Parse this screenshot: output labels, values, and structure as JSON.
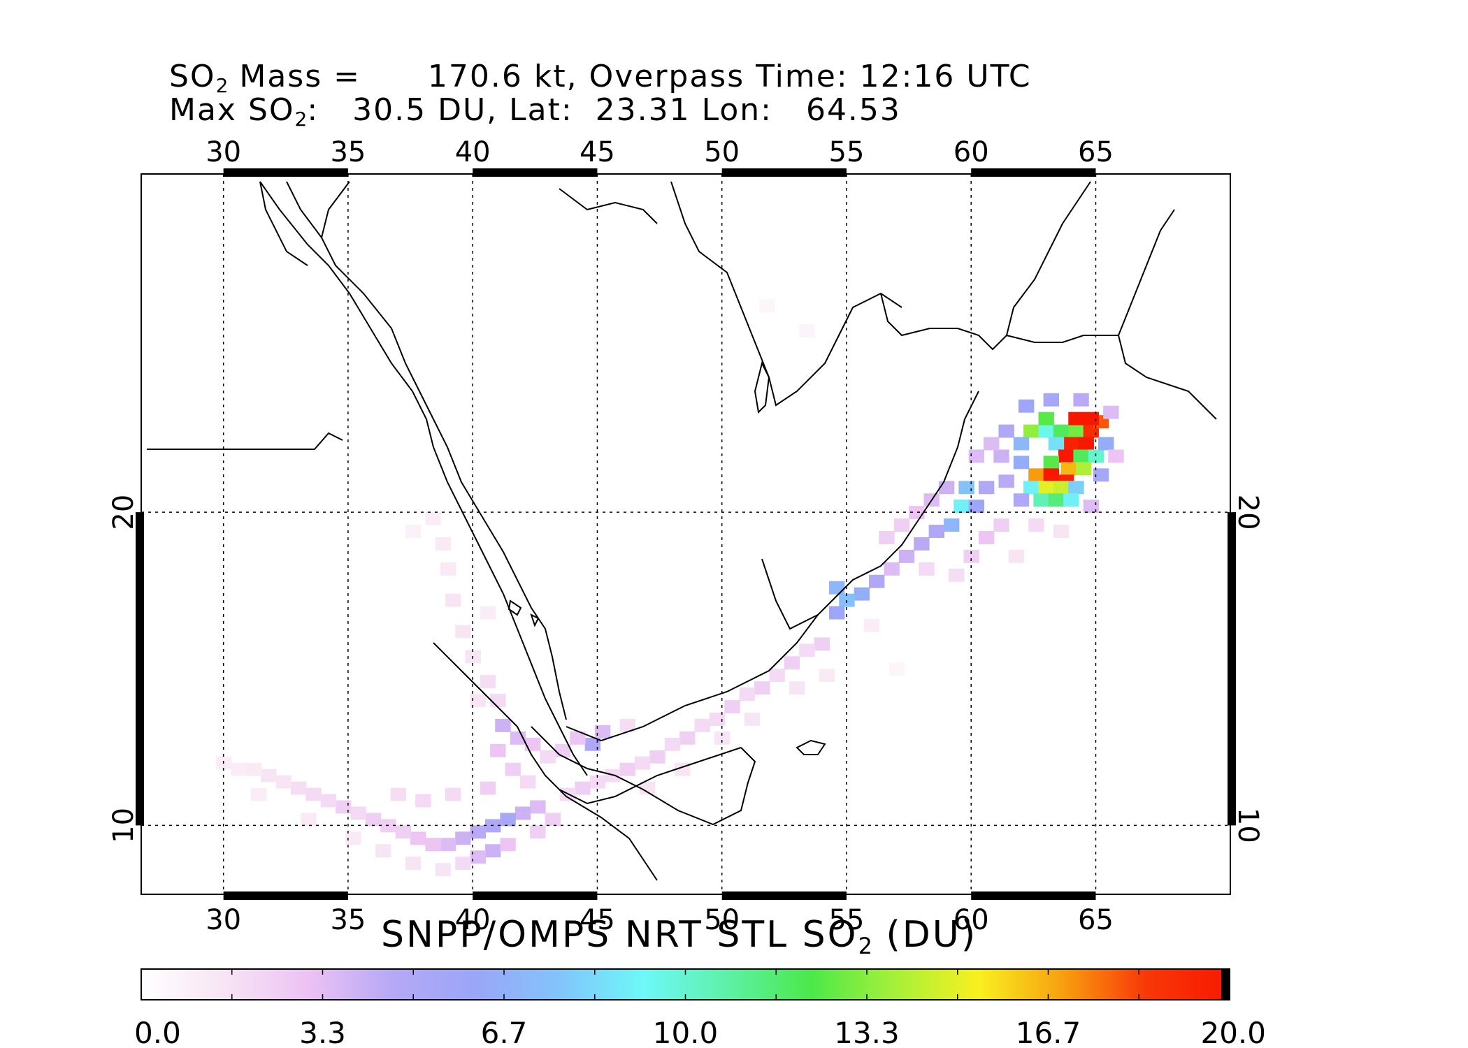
{
  "header": {
    "line1": {
      "prefix": "SO",
      "sub": "2",
      "rest": " Mass =      170.6 kt, Overpass Time: 12:16 UTC"
    },
    "line2": {
      "prefix": "Max SO",
      "sub": "2",
      "rest": ":   30.5 DU, Lat:  23.31 Lon:   64.53"
    }
  },
  "map": {
    "lon_range": [
      26.7,
      70.4
    ],
    "lat_range": [
      7.8,
      30.8
    ],
    "lon_ticks": [
      30,
      35,
      40,
      45,
      50,
      55,
      60,
      65
    ],
    "lat_ticks": [
      10,
      20
    ],
    "lon_tick_labels": [
      "30",
      "35",
      "40",
      "45",
      "50",
      "55",
      "60",
      "65"
    ],
    "lat_tick_labels": [
      "10",
      "20"
    ],
    "grid": true,
    "border_colors": {
      "frame": "#000000",
      "coast": "#000000",
      "grid": "#000000"
    }
  },
  "plume": {
    "description_units": "DU",
    "cells": [
      {
        "lon": 62.4,
        "lat": 22.6,
        "v": 13.5
      },
      {
        "lon": 63.0,
        "lat": 22.6,
        "v": 9.5
      },
      {
        "lon": 63.6,
        "lat": 22.6,
        "v": 12.0
      },
      {
        "lon": 64.2,
        "lat": 22.6,
        "v": 13.0
      },
      {
        "lon": 64.8,
        "lat": 22.6,
        "v": 19.0
      },
      {
        "lon": 65.2,
        "lat": 22.9,
        "v": 18.0
      },
      {
        "lon": 63.0,
        "lat": 23.0,
        "v": 12.5
      },
      {
        "lon": 64.2,
        "lat": 23.0,
        "v": 20.0
      },
      {
        "lon": 64.8,
        "lat": 23.0,
        "v": 20.0
      },
      {
        "lon": 64.0,
        "lat": 22.2,
        "v": 19.5
      },
      {
        "lon": 64.6,
        "lat": 22.2,
        "v": 20.0
      },
      {
        "lon": 63.4,
        "lat": 22.2,
        "v": 8.5
      },
      {
        "lon": 63.8,
        "lat": 21.8,
        "v": 20.0
      },
      {
        "lon": 64.4,
        "lat": 21.8,
        "v": 12.0
      },
      {
        "lon": 65.0,
        "lat": 21.8,
        "v": 10.0
      },
      {
        "lon": 63.2,
        "lat": 21.6,
        "v": 12.5
      },
      {
        "lon": 63.9,
        "lat": 21.4,
        "v": 16.5
      },
      {
        "lon": 64.5,
        "lat": 21.4,
        "v": 14.0
      },
      {
        "lon": 62.6,
        "lat": 21.2,
        "v": 17.0
      },
      {
        "lon": 63.2,
        "lat": 21.2,
        "v": 20.0
      },
      {
        "lon": 63.8,
        "lat": 21.0,
        "v": 19.5
      },
      {
        "lon": 62.4,
        "lat": 20.8,
        "v": 9.0
      },
      {
        "lon": 63.0,
        "lat": 20.8,
        "v": 15.0
      },
      {
        "lon": 63.6,
        "lat": 20.8,
        "v": 14.5
      },
      {
        "lon": 64.2,
        "lat": 20.8,
        "v": 8.0
      },
      {
        "lon": 62.8,
        "lat": 20.4,
        "v": 10.5
      },
      {
        "lon": 63.4,
        "lat": 20.4,
        "v": 11.5
      },
      {
        "lon": 64.0,
        "lat": 20.4,
        "v": 9.0
      },
      {
        "lon": 62.0,
        "lat": 22.2,
        "v": 7.0
      },
      {
        "lon": 62.0,
        "lat": 21.6,
        "v": 6.5
      },
      {
        "lon": 62.2,
        "lat": 23.4,
        "v": 6.0
      },
      {
        "lon": 63.2,
        "lat": 23.6,
        "v": 5.5
      },
      {
        "lon": 64.4,
        "lat": 23.6,
        "v": 4.5
      },
      {
        "lon": 65.4,
        "lat": 22.2,
        "v": 6.5
      },
      {
        "lon": 65.2,
        "lat": 21.2,
        "v": 5.5
      },
      {
        "lon": 61.4,
        "lat": 22.6,
        "v": 5.0
      },
      {
        "lon": 61.2,
        "lat": 21.8,
        "v": 4.0
      },
      {
        "lon": 61.4,
        "lat": 21.0,
        "v": 4.5
      },
      {
        "lon": 62.0,
        "lat": 20.4,
        "v": 5.0
      },
      {
        "lon": 64.8,
        "lat": 20.2,
        "v": 3.5
      },
      {
        "lon": 65.6,
        "lat": 23.2,
        "v": 3.5
      },
      {
        "lon": 65.8,
        "lat": 21.8,
        "v": 3.0
      },
      {
        "lon": 60.8,
        "lat": 22.2,
        "v": 3.5
      },
      {
        "lon": 60.2,
        "lat": 21.8,
        "v": 3.5
      },
      {
        "lon": 59.8,
        "lat": 20.8,
        "v": 7.5
      },
      {
        "lon": 59.6,
        "lat": 20.2,
        "v": 9.0
      },
      {
        "lon": 59.2,
        "lat": 19.6,
        "v": 7.0
      },
      {
        "lon": 60.2,
        "lat": 20.2,
        "v": 6.0
      },
      {
        "lon": 60.6,
        "lat": 20.8,
        "v": 5.0
      },
      {
        "lon": 58.6,
        "lat": 19.4,
        "v": 5.0
      },
      {
        "lon": 58.0,
        "lat": 19.0,
        "v": 4.5
      },
      {
        "lon": 57.4,
        "lat": 18.6,
        "v": 4.0
      },
      {
        "lon": 56.8,
        "lat": 18.2,
        "v": 3.5
      },
      {
        "lon": 56.2,
        "lat": 17.8,
        "v": 5.0
      },
      {
        "lon": 55.6,
        "lat": 17.4,
        "v": 6.5
      },
      {
        "lon": 55.0,
        "lat": 17.2,
        "v": 7.5
      },
      {
        "lon": 54.6,
        "lat": 16.8,
        "v": 6.0
      },
      {
        "lon": 54.6,
        "lat": 17.6,
        "v": 7.0
      },
      {
        "lon": 59.0,
        "lat": 20.8,
        "v": 4.0
      },
      {
        "lon": 58.4,
        "lat": 20.4,
        "v": 3.5
      },
      {
        "lon": 57.8,
        "lat": 20.0,
        "v": 3.0
      },
      {
        "lon": 57.2,
        "lat": 19.6,
        "v": 2.5
      },
      {
        "lon": 56.6,
        "lat": 19.2,
        "v": 2.5
      },
      {
        "lon": 60.6,
        "lat": 19.2,
        "v": 3.0
      },
      {
        "lon": 61.2,
        "lat": 19.6,
        "v": 2.5
      },
      {
        "lon": 60.0,
        "lat": 18.6,
        "v": 2.5
      },
      {
        "lon": 61.8,
        "lat": 18.6,
        "v": 1.5
      },
      {
        "lon": 59.4,
        "lat": 18.0,
        "v": 1.8
      },
      {
        "lon": 62.6,
        "lat": 19.6,
        "v": 2.0
      },
      {
        "lon": 63.6,
        "lat": 19.4,
        "v": 1.5
      },
      {
        "lon": 58.2,
        "lat": 18.2,
        "v": 2.0
      },
      {
        "lon": 54.0,
        "lat": 15.8,
        "v": 2.5
      },
      {
        "lon": 53.4,
        "lat": 15.6,
        "v": 2.0
      },
      {
        "lon": 52.8,
        "lat": 15.2,
        "v": 2.5
      },
      {
        "lon": 52.2,
        "lat": 14.8,
        "v": 2.0
      },
      {
        "lon": 51.6,
        "lat": 14.4,
        "v": 2.5
      },
      {
        "lon": 51.0,
        "lat": 14.2,
        "v": 2.0
      },
      {
        "lon": 50.4,
        "lat": 13.8,
        "v": 2.5
      },
      {
        "lon": 49.8,
        "lat": 13.4,
        "v": 2.0
      },
      {
        "lon": 49.2,
        "lat": 13.2,
        "v": 2.0
      },
      {
        "lon": 48.6,
        "lat": 12.8,
        "v": 2.5
      },
      {
        "lon": 48.0,
        "lat": 12.6,
        "v": 2.0
      },
      {
        "lon": 47.4,
        "lat": 12.2,
        "v": 2.5
      },
      {
        "lon": 46.8,
        "lat": 12.0,
        "v": 2.0
      },
      {
        "lon": 46.2,
        "lat": 11.8,
        "v": 2.5
      },
      {
        "lon": 45.6,
        "lat": 11.6,
        "v": 2.0
      },
      {
        "lon": 45.0,
        "lat": 11.4,
        "v": 2.0
      },
      {
        "lon": 44.4,
        "lat": 11.2,
        "v": 2.5
      },
      {
        "lon": 43.8,
        "lat": 11.0,
        "v": 2.0
      },
      {
        "lon": 44.8,
        "lat": 12.6,
        "v": 5.0
      },
      {
        "lon": 45.2,
        "lat": 13.0,
        "v": 3.5
      },
      {
        "lon": 44.2,
        "lat": 12.8,
        "v": 3.0
      },
      {
        "lon": 43.6,
        "lat": 12.4,
        "v": 2.5
      },
      {
        "lon": 43.0,
        "lat": 12.2,
        "v": 2.0
      },
      {
        "lon": 42.4,
        "lat": 12.6,
        "v": 3.0
      },
      {
        "lon": 41.8,
        "lat": 12.8,
        "v": 3.5
      },
      {
        "lon": 41.2,
        "lat": 13.2,
        "v": 4.0
      },
      {
        "lon": 41.0,
        "lat": 12.4,
        "v": 3.0
      },
      {
        "lon": 41.6,
        "lat": 11.8,
        "v": 2.5
      },
      {
        "lon": 42.2,
        "lat": 11.4,
        "v": 2.0
      },
      {
        "lon": 50.0,
        "lat": 12.8,
        "v": 1.5
      },
      {
        "lon": 51.2,
        "lat": 13.4,
        "v": 1.5
      },
      {
        "lon": 53.0,
        "lat": 14.4,
        "v": 1.5
      },
      {
        "lon": 54.2,
        "lat": 14.8,
        "v": 1.2
      },
      {
        "lon": 47.0,
        "lat": 11.2,
        "v": 1.5
      },
      {
        "lon": 48.4,
        "lat": 11.8,
        "v": 1.5
      },
      {
        "lon": 46.2,
        "lat": 13.2,
        "v": 1.8
      },
      {
        "lon": 42.6,
        "lat": 10.6,
        "v": 3.5
      },
      {
        "lon": 42.0,
        "lat": 10.4,
        "v": 4.0
      },
      {
        "lon": 41.4,
        "lat": 10.2,
        "v": 5.5
      },
      {
        "lon": 40.8,
        "lat": 10.0,
        "v": 5.0
      },
      {
        "lon": 40.2,
        "lat": 9.8,
        "v": 4.5
      },
      {
        "lon": 39.6,
        "lat": 9.6,
        "v": 4.0
      },
      {
        "lon": 39.0,
        "lat": 9.4,
        "v": 3.5
      },
      {
        "lon": 38.4,
        "lat": 9.4,
        "v": 3.0
      },
      {
        "lon": 37.8,
        "lat": 9.6,
        "v": 3.0
      },
      {
        "lon": 37.2,
        "lat": 9.8,
        "v": 2.5
      },
      {
        "lon": 36.6,
        "lat": 10.0,
        "v": 2.5
      },
      {
        "lon": 36.0,
        "lat": 10.2,
        "v": 2.5
      },
      {
        "lon": 35.4,
        "lat": 10.4,
        "v": 2.0
      },
      {
        "lon": 34.8,
        "lat": 10.6,
        "v": 2.5
      },
      {
        "lon": 34.2,
        "lat": 10.8,
        "v": 2.0
      },
      {
        "lon": 33.6,
        "lat": 11.0,
        "v": 2.0
      },
      {
        "lon": 33.0,
        "lat": 11.2,
        "v": 1.8
      },
      {
        "lon": 32.4,
        "lat": 11.4,
        "v": 1.5
      },
      {
        "lon": 31.8,
        "lat": 11.6,
        "v": 1.5
      },
      {
        "lon": 31.2,
        "lat": 11.8,
        "v": 1.2
      },
      {
        "lon": 30.6,
        "lat": 11.8,
        "v": 1.0
      },
      {
        "lon": 30.0,
        "lat": 12.0,
        "v": 1.0
      },
      {
        "lon": 40.8,
        "lat": 9.2,
        "v": 4.0
      },
      {
        "lon": 40.2,
        "lat": 9.0,
        "v": 3.5
      },
      {
        "lon": 41.4,
        "lat": 9.4,
        "v": 3.0
      },
      {
        "lon": 42.6,
        "lat": 9.8,
        "v": 2.5
      },
      {
        "lon": 43.2,
        "lat": 10.2,
        "v": 2.5
      },
      {
        "lon": 38.0,
        "lat": 10.8,
        "v": 2.0
      },
      {
        "lon": 37.0,
        "lat": 11.0,
        "v": 1.8
      },
      {
        "lon": 39.2,
        "lat": 11.0,
        "v": 2.0
      },
      {
        "lon": 40.6,
        "lat": 11.2,
        "v": 2.5
      },
      {
        "lon": 39.6,
        "lat": 8.8,
        "v": 2.0
      },
      {
        "lon": 38.8,
        "lat": 8.6,
        "v": 1.5
      },
      {
        "lon": 37.6,
        "lat": 8.8,
        "v": 1.5
      },
      {
        "lon": 36.4,
        "lat": 9.2,
        "v": 1.5
      },
      {
        "lon": 35.2,
        "lat": 9.6,
        "v": 1.2
      },
      {
        "lon": 33.4,
        "lat": 10.2,
        "v": 1.2
      },
      {
        "lon": 31.4,
        "lat": 11.0,
        "v": 1.0
      },
      {
        "lon": 40.0,
        "lat": 15.4,
        "v": 1.5
      },
      {
        "lon": 39.6,
        "lat": 16.2,
        "v": 1.5
      },
      {
        "lon": 39.2,
        "lat": 17.2,
        "v": 1.5
      },
      {
        "lon": 39.0,
        "lat": 18.2,
        "v": 1.2
      },
      {
        "lon": 38.8,
        "lat": 19.0,
        "v": 1.2
      },
      {
        "lon": 38.4,
        "lat": 19.8,
        "v": 1.0
      },
      {
        "lon": 40.6,
        "lat": 14.6,
        "v": 1.8
      },
      {
        "lon": 41.0,
        "lat": 14.0,
        "v": 2.0
      },
      {
        "lon": 40.2,
        "lat": 14.0,
        "v": 1.5
      },
      {
        "lon": 37.6,
        "lat": 19.4,
        "v": 0.8
      },
      {
        "lon": 40.6,
        "lat": 16.8,
        "v": 1.0
      },
      {
        "lon": 53.4,
        "lat": 25.8,
        "v": 0.6
      },
      {
        "lon": 51.8,
        "lat": 26.6,
        "v": 0.5
      },
      {
        "lon": 57.0,
        "lat": 15.0,
        "v": 0.5
      },
      {
        "lon": 56.0,
        "lat": 16.4,
        "v": 1.0
      }
    ]
  },
  "colorbar": {
    "title": {
      "prefix": "SNPP/OMPS NRT STL SO",
      "sub": "2",
      "rest": " (DU)"
    },
    "min": 0.0,
    "max": 20.0,
    "tick_labels": [
      "0.0",
      "3.3",
      "6.7",
      "10.0",
      "13.3",
      "16.7",
      "20.0"
    ],
    "stops": [
      "#ffffff",
      "#f7e4f4",
      "#ecc2f4",
      "#b6a8f6",
      "#9aa6f8",
      "#82c4fa",
      "#6ef8f8",
      "#5ef0a8",
      "#4ce84a",
      "#a6f03a",
      "#f8f020",
      "#f8a010",
      "#f83808",
      "#f81800"
    ]
  }
}
